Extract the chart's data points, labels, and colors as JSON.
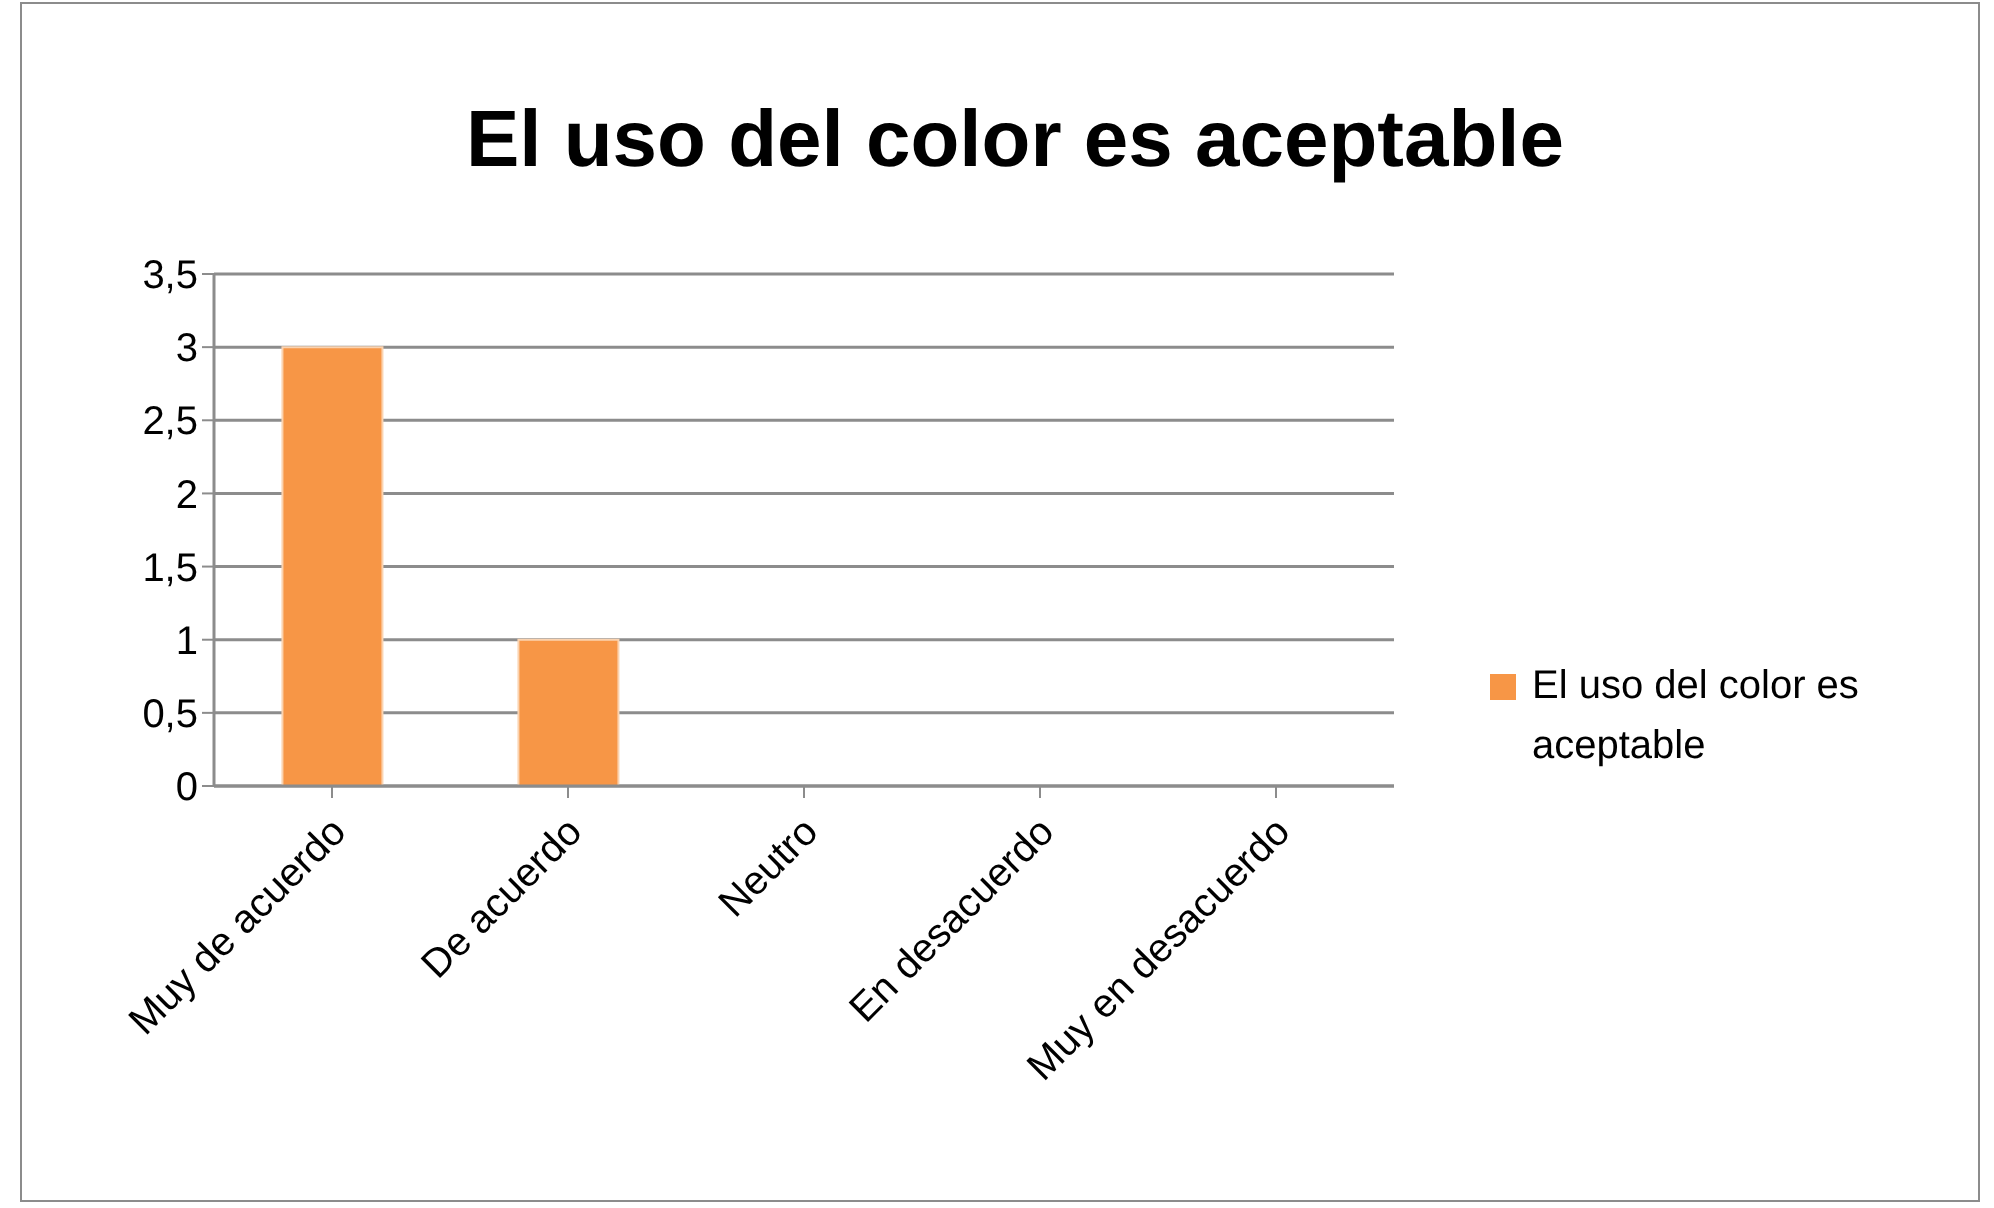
{
  "chart_data": {
    "type": "bar",
    "title": "El uso del color es aceptable",
    "categories": [
      "Muy de acuerdo",
      "De acuerdo",
      "Neutro",
      "En desacuerdo",
      "Muy en desacuerdo"
    ],
    "series": [
      {
        "name": "El uso del color es aceptable",
        "color": "#f79646",
        "values": [
          3,
          1,
          0,
          0,
          0
        ]
      }
    ],
    "ylim": [
      0,
      3.5
    ],
    "yticks": [
      0,
      {
        "value": 0.5,
        "label": "0,5"
      },
      1,
      {
        "value": 1.5,
        "label": "1,5"
      },
      2,
      {
        "value": 2.5,
        "label": "2,5"
      },
      3,
      {
        "value": 3.5,
        "label": "3,5"
      }
    ],
    "grid": "y",
    "legend": "right"
  }
}
